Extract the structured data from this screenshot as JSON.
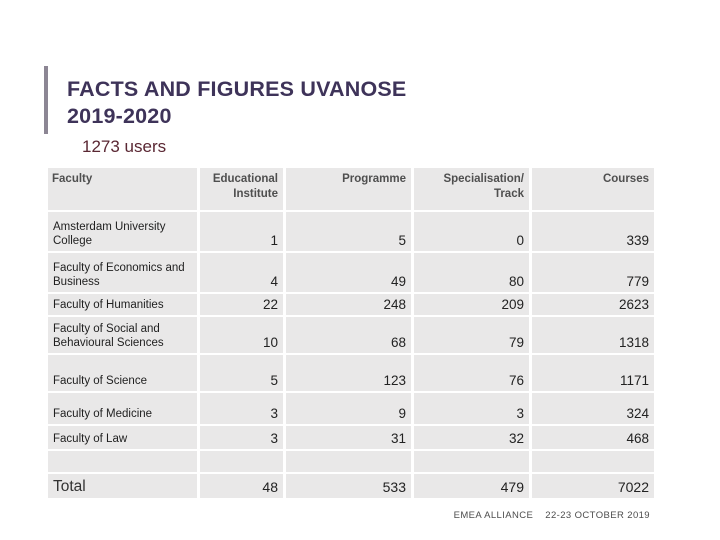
{
  "slide": {
    "title_line1": "FACTS AND FIGURES UVANOSE",
    "title_line2": "2019-2020",
    "subtitle": "1273 users",
    "footer": {
      "event": "EMEA ALLIANCE",
      "date": "22-23 OCTOBER 2019"
    }
  },
  "colors": {
    "title": "#3e3359",
    "subtitle": "#5a2733",
    "accent_bar": "#8c8694",
    "cell_background": "#e9e8e8",
    "header_text": "#4f4f4f",
    "body_text": "#222222",
    "footer_text": "#4d4d4d"
  },
  "chart_data": {
    "type": "table",
    "title": "FACTS AND FIGURES UVANOSE 2019-2020",
    "subtitle": "1273 users",
    "headers": [
      "Faculty",
      "Educational Institute",
      "Programme",
      "Specialisation/ Track",
      "Courses"
    ],
    "rows": [
      {
        "faculty": "Amsterdam University College",
        "educational_institute": "1",
        "programme": "5",
        "specialisation_track": "0",
        "courses": "339",
        "is_total": false
      },
      {
        "faculty": "Faculty of Economics and Business",
        "educational_institute": "4",
        "programme": "49",
        "specialisation_track": "80",
        "courses": "779",
        "is_total": false
      },
      {
        "faculty": "Faculty of Humanities",
        "educational_institute": "22",
        "programme": "248",
        "specialisation_track": "209",
        "courses": "2623",
        "is_total": false
      },
      {
        "faculty": "Faculty of Social and Behavioural Sciences",
        "educational_institute": "10",
        "programme": "68",
        "specialisation_track": "79",
        "courses": "1318",
        "is_total": false
      },
      {
        "faculty": "Faculty of Science",
        "educational_institute": "5",
        "programme": "123",
        "specialisation_track": "76",
        "courses": "1171",
        "is_total": false
      },
      {
        "faculty": "Faculty of Medicine",
        "educational_institute": "3",
        "programme": "9",
        "specialisation_track": "3",
        "courses": "324",
        "is_total": false
      },
      {
        "faculty": "Faculty of Law",
        "educational_institute": "3",
        "programme": "31",
        "specialisation_track": "32",
        "courses": "468",
        "is_total": false
      },
      {
        "faculty": "",
        "educational_institute": "",
        "programme": "",
        "specialisation_track": "",
        "courses": "",
        "is_total": false
      },
      {
        "faculty": "Total",
        "educational_institute": "48",
        "programme": "533",
        "specialisation_track": "479",
        "courses": "7022",
        "is_total": true
      }
    ]
  }
}
